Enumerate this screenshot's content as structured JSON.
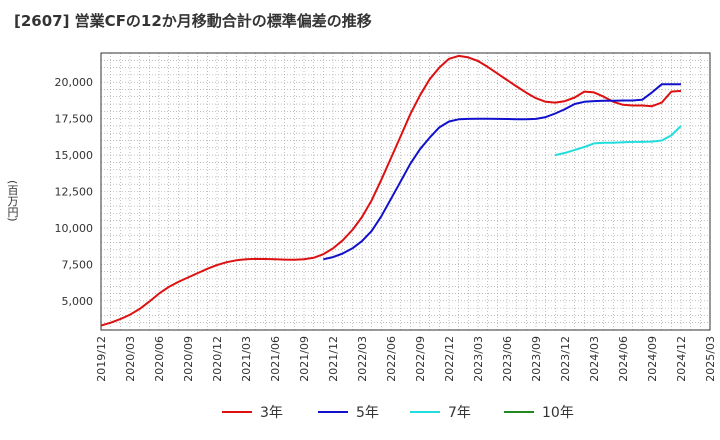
{
  "title": "[2607]  営業CFの12か月移動合計の標準偏差の推移",
  "colors": {
    "3年": "#dd1111",
    "5年": "#1111cc",
    "7年": "#22dddd",
    "10年": "#228822"
  },
  "chart_data": {
    "type": "line",
    "title": "[2607]  営業CFの12か月移動合計の標準偏差の推移",
    "xlabel": "",
    "ylabel": "(百万円)",
    "ylim": [
      3000,
      22000
    ],
    "yticks": [
      5000,
      7500,
      10000,
      12500,
      15000,
      17500,
      20000
    ],
    "ytick_labels": [
      "5,000",
      "7,500",
      "10,000",
      "12,500",
      "15,000",
      "17,500",
      "20,000"
    ],
    "xticks": [
      "2019/12",
      "2020/03",
      "2020/06",
      "2020/09",
      "2020/12",
      "2021/03",
      "2021/06",
      "2021/09",
      "2021/12",
      "2022/03",
      "2022/06",
      "2022/09",
      "2022/12",
      "2023/03",
      "2023/06",
      "2023/09",
      "2023/12",
      "2024/03",
      "2024/06",
      "2024/09",
      "2024/12",
      "2025/03"
    ],
    "grid": true,
    "legend_position": "bottom",
    "series": [
      {
        "name": "3年",
        "x": [
          "2019/12",
          "2020/01",
          "2020/02",
          "2020/03",
          "2020/04",
          "2020/05",
          "2020/06",
          "2020/07",
          "2020/08",
          "2020/09",
          "2020/10",
          "2020/11",
          "2020/12",
          "2021/01",
          "2021/02",
          "2021/03",
          "2021/04",
          "2021/05",
          "2021/06",
          "2021/07",
          "2021/08",
          "2021/09",
          "2021/10",
          "2021/11",
          "2021/12",
          "2022/01",
          "2022/02",
          "2022/03",
          "2022/04",
          "2022/05",
          "2022/06",
          "2022/07",
          "2022/08",
          "2022/09",
          "2022/10",
          "2022/11",
          "2022/12",
          "2023/01",
          "2023/02",
          "2023/03",
          "2023/04",
          "2023/05",
          "2023/06",
          "2023/07",
          "2023/08",
          "2023/09",
          "2023/10",
          "2023/11",
          "2023/12",
          "2024/01",
          "2024/02",
          "2024/03",
          "2024/04",
          "2024/05",
          "2024/06",
          "2024/07",
          "2024/08",
          "2024/09",
          "2024/10",
          "2024/11",
          "2024/12"
        ],
        "values": [
          3300,
          3500,
          3750,
          4050,
          4450,
          4950,
          5500,
          5950,
          6300,
          6600,
          6900,
          7200,
          7450,
          7650,
          7780,
          7850,
          7880,
          7870,
          7850,
          7830,
          7820,
          7850,
          7950,
          8200,
          8600,
          9150,
          9850,
          10750,
          11900,
          13300,
          14800,
          16300,
          17800,
          19100,
          20200,
          21000,
          21600,
          21800,
          21700,
          21450,
          21050,
          20600,
          20150,
          19700,
          19280,
          18900,
          18650,
          18600,
          18700,
          18950,
          19350,
          19300,
          19000,
          18650,
          18450,
          18400,
          18400,
          18350,
          18600,
          19350,
          19400
        ]
      },
      {
        "name": "5年",
        "x": [
          "2021/11",
          "2021/12",
          "2022/01",
          "2022/02",
          "2022/03",
          "2022/04",
          "2022/05",
          "2022/06",
          "2022/07",
          "2022/08",
          "2022/09",
          "2022/10",
          "2022/11",
          "2022/12",
          "2023/01",
          "2023/02",
          "2023/03",
          "2023/04",
          "2023/05",
          "2023/06",
          "2023/07",
          "2023/08",
          "2023/09",
          "2023/10",
          "2023/11",
          "2023/12",
          "2024/01",
          "2024/02",
          "2024/03",
          "2024/04",
          "2024/05",
          "2024/06",
          "2024/07",
          "2024/08",
          "2024/09",
          "2024/10",
          "2024/11",
          "2024/12"
        ],
        "values": [
          7850,
          8000,
          8250,
          8600,
          9100,
          9800,
          10800,
          12000,
          13200,
          14400,
          15400,
          16200,
          16900,
          17300,
          17450,
          17480,
          17490,
          17490,
          17480,
          17470,
          17450,
          17450,
          17480,
          17600,
          17850,
          18150,
          18500,
          18650,
          18700,
          18720,
          18730,
          18740,
          18740,
          18800,
          19300,
          19850,
          19850,
          19850
        ]
      },
      {
        "name": "7年",
        "x": [
          "2023/11",
          "2023/12",
          "2024/01",
          "2024/02",
          "2024/03",
          "2024/04",
          "2024/05",
          "2024/06",
          "2024/07",
          "2024/08",
          "2024/09",
          "2024/10",
          "2024/11",
          "2024/12"
        ],
        "values": [
          15000,
          15150,
          15350,
          15550,
          15800,
          15850,
          15850,
          15880,
          15900,
          15900,
          15920,
          16000,
          16350,
          17000
        ]
      },
      {
        "name": "10年",
        "x": [],
        "values": []
      }
    ]
  }
}
